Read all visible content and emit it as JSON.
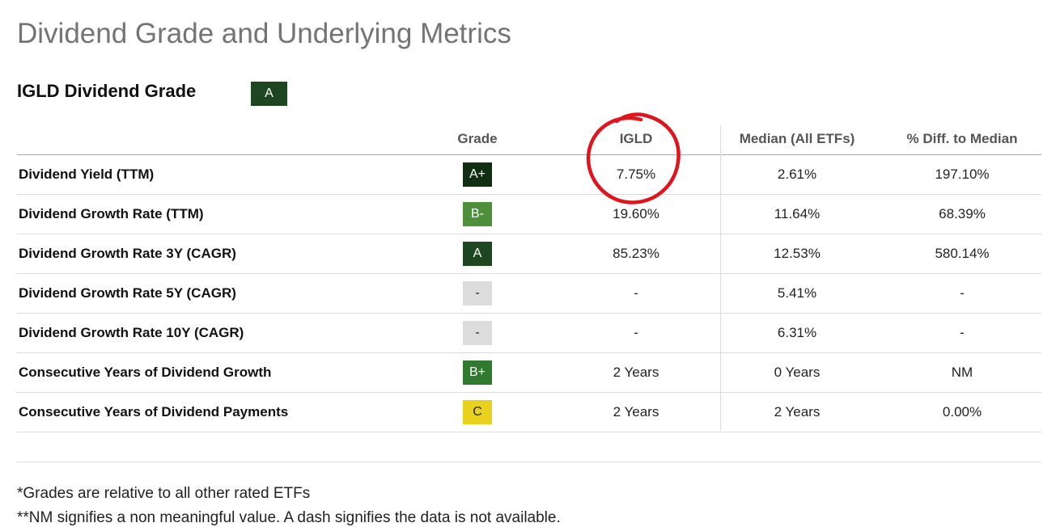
{
  "page": {
    "title": "Dividend Grade and Underlying Metrics",
    "grade_heading": "IGLD Dividend Grade",
    "overall_grade": "A"
  },
  "table": {
    "headers": [
      "Grade",
      "IGLD",
      "Median (All ETFs)",
      "% Diff. to Median"
    ],
    "rows": [
      {
        "metric": "Dividend Yield (TTM)",
        "grade": "A+",
        "igld": "7.75%",
        "median": "2.61%",
        "diff": "197.10%"
      },
      {
        "metric": "Dividend Growth Rate (TTM)",
        "grade": "B-",
        "igld": "19.60%",
        "median": "11.64%",
        "diff": "68.39%"
      },
      {
        "metric": "Dividend Growth Rate 3Y (CAGR)",
        "grade": "A",
        "igld": "85.23%",
        "median": "12.53%",
        "diff": "580.14%"
      },
      {
        "metric": "Dividend Growth Rate 5Y (CAGR)",
        "grade": "-",
        "igld": "-",
        "median": "5.41%",
        "diff": "-"
      },
      {
        "metric": "Dividend Growth Rate 10Y (CAGR)",
        "grade": "-",
        "igld": "-",
        "median": "6.31%",
        "diff": "-"
      },
      {
        "metric": "Consecutive Years of Dividend Growth",
        "grade": "B+",
        "igld": "2 Years",
        "median": "0 Years",
        "diff": "NM"
      },
      {
        "metric": "Consecutive Years of Dividend Payments",
        "grade": "C",
        "igld": "2 Years",
        "median": "2 Years",
        "diff": "0.00%"
      }
    ]
  },
  "grade_colors": {
    "A+": "#0f2e12",
    "A": "#1e4620",
    "B+": "#2f7a2f",
    "B-": "#4d8f3a",
    "C": "#e8d21d",
    "-": "#dcdcdc"
  },
  "annotation": {
    "type": "hand-drawn circle",
    "target": "IGLD",
    "color": "#e0141c"
  },
  "footnotes": [
    "*Grades are relative to all other rated ETFs",
    "**NM signifies a non meaningful value. A dash signifies the data is not available."
  ]
}
